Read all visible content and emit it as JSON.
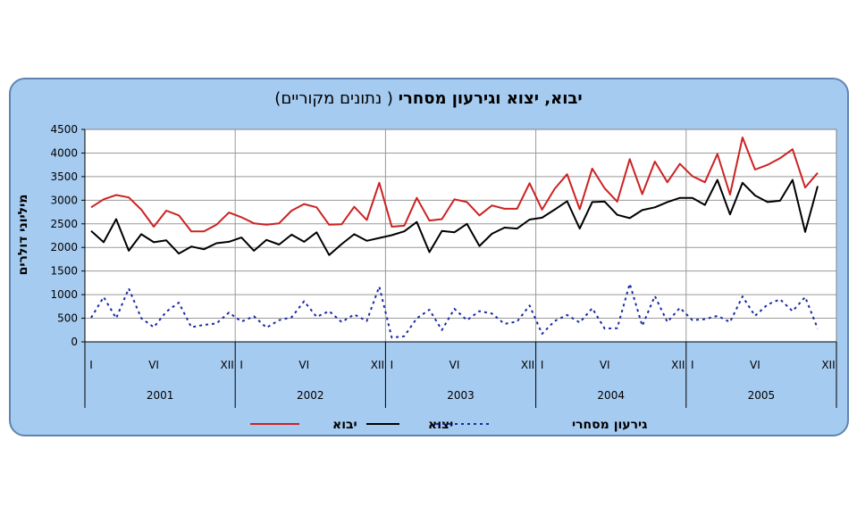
{
  "chart_data": {
    "type": "line",
    "title_bold": "יבוא, יצוא וגירעון מסחרי",
    "title_normal": "( נתונים מקוריים)",
    "ylabel": "מיליוני דולרים",
    "ylim": [
      0,
      4500
    ],
    "yticks": [
      0,
      500,
      1000,
      1500,
      2000,
      2500,
      3000,
      3500,
      4000,
      4500
    ],
    "grid": true,
    "years": [
      "2001",
      "2002",
      "2003",
      "2004",
      "2005"
    ],
    "month_ticks": [
      "I",
      "VI",
      "XII"
    ],
    "legend_position": "bottom",
    "series": [
      {
        "name": "יבוא",
        "color": "#cc2222",
        "style": "solid",
        "values": [
          2850,
          3020,
          3110,
          3060,
          2800,
          2440,
          2780,
          2680,
          2340,
          2340,
          2480,
          2740,
          2640,
          2510,
          2480,
          2510,
          2780,
          2920,
          2850,
          2480,
          2490,
          2860,
          2580,
          3370,
          2440,
          2460,
          3050,
          2570,
          2600,
          3020,
          2960,
          2680,
          2890,
          2820,
          2820,
          3360,
          2800,
          3240,
          3550,
          2810,
          3670,
          3250,
          2970,
          3870,
          3130,
          3820,
          3380,
          3770,
          3510,
          3380,
          3980,
          3120,
          4330,
          3650,
          3750,
          3890,
          4080,
          3270,
          3580
        ]
      },
      {
        "name": "יצוא",
        "color": "#000000",
        "style": "solid",
        "values": [
          2350,
          2110,
          2600,
          1930,
          2280,
          2110,
          2150,
          1870,
          2020,
          1960,
          2090,
          2120,
          2210,
          1930,
          2160,
          2060,
          2270,
          2120,
          2320,
          1840,
          2070,
          2280,
          2140,
          2200,
          2260,
          2340,
          2540,
          1900,
          2350,
          2320,
          2500,
          2030,
          2290,
          2420,
          2400,
          2590,
          2630,
          2800,
          2980,
          2400,
          2960,
          2970,
          2690,
          2620,
          2790,
          2850,
          2960,
          3050,
          3050,
          2900,
          3430,
          2700,
          3370,
          3100,
          2960,
          2990,
          3430,
          2330,
          3300
        ]
      },
      {
        "name": "גירעון מסחרי",
        "color": "#1a2aa8",
        "style": "dotted",
        "values": [
          510,
          950,
          500,
          1130,
          500,
          310,
          640,
          830,
          310,
          360,
          390,
          620,
          430,
          540,
          300,
          460,
          520,
          860,
          530,
          650,
          420,
          580,
          440,
          1170,
          90,
          120,
          500,
          680,
          250,
          700,
          460,
          650,
          600,
          380,
          430,
          770,
          170,
          440,
          570,
          410,
          710,
          280,
          290,
          1230,
          340,
          970,
          420,
          720,
          460,
          480,
          550,
          420,
          960,
          550,
          790,
          900,
          650,
          950,
          280
        ]
      }
    ]
  }
}
